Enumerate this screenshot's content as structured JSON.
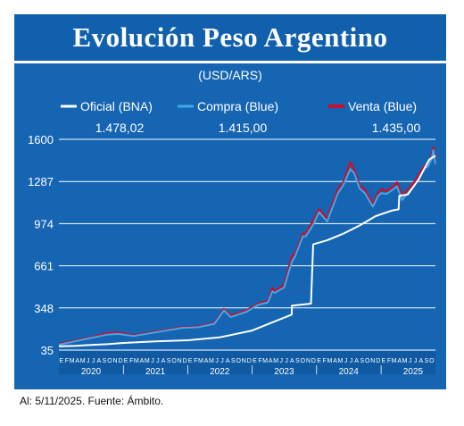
{
  "title": "Evolución Peso Argentino",
  "footnote": "Al: 5/11/2025. Fuente: Ámbito.",
  "colors": {
    "background": "#1565b3",
    "grid": "#ffffff",
    "oficial": "#ffffff",
    "compra": "#41a9e6",
    "venta": "#c8102e"
  },
  "chart_data": {
    "type": "line",
    "subtitle": "(USD/ARS)",
    "legend_position": "top",
    "grid": true,
    "yticks": [
      35,
      348,
      661,
      974,
      1287,
      1600
    ],
    "ylim": [
      35,
      1600
    ],
    "xlim": [
      "2020-01-01",
      "2025-11-05"
    ],
    "month_ticks": [
      "E",
      "F",
      "M",
      "A",
      "M",
      "J",
      "J",
      "A",
      "S",
      "O",
      "N",
      "D"
    ],
    "year_labels": [
      "2020",
      "2021",
      "2022",
      "2023",
      "2024",
      "2025"
    ],
    "series": [
      {
        "name": "Oficial (BNA)",
        "last_value": "1.478,02",
        "x": [
          "2020-01-01",
          "2020-04-01",
          "2020-07-01",
          "2020-10-01",
          "2021-01-01",
          "2021-07-01",
          "2022-01-01",
          "2022-07-01",
          "2023-01-01",
          "2023-06-01",
          "2023-08-13",
          "2023-08-14",
          "2023-11-30",
          "2023-12-13",
          "2024-03-01",
          "2024-06-01",
          "2024-09-01",
          "2024-12-01",
          "2025-03-01",
          "2025-04-10",
          "2025-04-14",
          "2025-06-01",
          "2025-08-01",
          "2025-10-01",
          "2025-11-05"
        ],
        "values": [
          63,
          66,
          73,
          79,
          88,
          100,
          108,
          130,
          180,
          260,
          298,
          365,
          380,
          820,
          850,
          900,
          960,
          1030,
          1070,
          1080,
          1180,
          1190,
          1300,
          1450,
          1478
        ]
      },
      {
        "name": "Compra (Blue)",
        "last_value": "1.415,00",
        "x": [
          "2020-01-01",
          "2020-04-01",
          "2020-07-01",
          "2020-10-01",
          "2020-12-01",
          "2021-03-01",
          "2021-06-01",
          "2021-09-01",
          "2021-12-01",
          "2022-03-01",
          "2022-06-01",
          "2022-07-25",
          "2022-09-01",
          "2022-12-01",
          "2023-02-01",
          "2023-04-01",
          "2023-04-25",
          "2023-05-10",
          "2023-07-01",
          "2023-08-14",
          "2023-09-01",
          "2023-10-15",
          "2023-11-01",
          "2023-12-15",
          "2024-01-15",
          "2024-03-01",
          "2024-05-01",
          "2024-06-01",
          "2024-07-10",
          "2024-08-01",
          "2024-09-01",
          "2024-10-01",
          "2024-11-15",
          "2024-12-15",
          "2025-01-01",
          "2025-02-01",
          "2025-03-01",
          "2025-04-01",
          "2025-05-01",
          "2025-06-01",
          "2025-07-01",
          "2025-08-01",
          "2025-09-01",
          "2025-09-25",
          "2025-10-15",
          "2025-10-24",
          "2025-11-05"
        ],
        "values": [
          75,
          100,
          125,
          150,
          155,
          140,
          160,
          180,
          200,
          205,
          230,
          330,
          280,
          320,
          370,
          390,
          470,
          460,
          500,
          690,
          730,
          880,
          880,
          970,
          1060,
          990,
          1200,
          1260,
          1380,
          1350,
          1235,
          1200,
          1100,
          1180,
          1200,
          1195,
          1220,
          1250,
          1150,
          1200,
          1245,
          1300,
          1380,
          1400,
          1455,
          1520,
          1415
        ]
      },
      {
        "name": "Venta (Blue)",
        "last_value": "1.435,00",
        "x": [
          "2020-01-01",
          "2020-04-01",
          "2020-07-01",
          "2020-10-01",
          "2020-12-01",
          "2021-03-01",
          "2021-06-01",
          "2021-09-01",
          "2021-12-01",
          "2022-03-01",
          "2022-06-01",
          "2022-07-25",
          "2022-09-01",
          "2022-12-01",
          "2023-02-01",
          "2023-04-01",
          "2023-04-25",
          "2023-05-10",
          "2023-07-01",
          "2023-08-14",
          "2023-09-01",
          "2023-10-15",
          "2023-11-01",
          "2023-12-15",
          "2024-01-15",
          "2024-03-01",
          "2024-05-01",
          "2024-06-01",
          "2024-07-10",
          "2024-08-01",
          "2024-09-01",
          "2024-10-01",
          "2024-11-15",
          "2024-12-15",
          "2025-01-01",
          "2025-02-01",
          "2025-03-01",
          "2025-04-01",
          "2025-05-01",
          "2025-06-01",
          "2025-07-01",
          "2025-08-01",
          "2025-09-01",
          "2025-09-25",
          "2025-10-15",
          "2025-10-24",
          "2025-11-05"
        ],
        "values": [
          80,
          105,
          130,
          160,
          165,
          145,
          165,
          185,
          205,
          210,
          235,
          340,
          290,
          330,
          380,
          400,
          495,
          470,
          520,
          730,
          750,
          900,
          900,
          1000,
          1080,
          1010,
          1230,
          1280,
          1430,
          1375,
          1255,
          1225,
          1120,
          1200,
          1230,
          1215,
          1240,
          1280,
          1180,
          1225,
          1270,
          1330,
          1400,
          1420,
          1475,
          1540,
          1435
        ]
      }
    ]
  }
}
